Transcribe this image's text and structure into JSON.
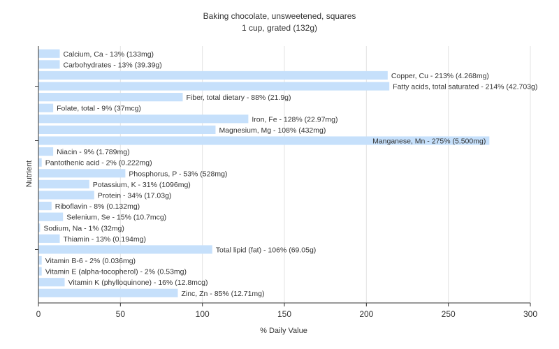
{
  "chart_data": {
    "type": "bar",
    "orientation": "horizontal",
    "title": "Baking chocolate, unsweetened, squares",
    "subtitle": "1 cup, grated (132g)",
    "xlabel": "% Daily Value",
    "ylabel": "Nutrient",
    "xlim": [
      0,
      300
    ],
    "xticks": [
      "0",
      "50",
      "100",
      "150",
      "200",
      "250",
      "300"
    ],
    "grid": true,
    "legend": "none",
    "bar_color": "#c6e0fb",
    "categories": [
      "Calcium, Ca",
      "Carbohydrates",
      "Copper, Cu",
      "Fatty acids, total saturated",
      "Fiber, total dietary",
      "Folate, total",
      "Iron, Fe",
      "Magnesium, Mg",
      "Manganese, Mn",
      "Niacin",
      "Pantothenic acid",
      "Phosphorus, P",
      "Potassium, K",
      "Protein",
      "Riboflavin",
      "Selenium, Se",
      "Sodium, Na",
      "Thiamin",
      "Total lipid (fat)",
      "Vitamin B-6",
      "Vitamin E (alpha-tocopherol)",
      "Vitamin K (phylloquinone)",
      "Zinc, Zn"
    ],
    "values": [
      13,
      13,
      213,
      214,
      88,
      9,
      128,
      108,
      275,
      9,
      2,
      53,
      31,
      34,
      8,
      15,
      1,
      13,
      106,
      2,
      2,
      16,
      85
    ],
    "labels": [
      "Calcium, Ca - 13% (133mg)",
      "Carbohydrates - 13% (39.39g)",
      "Copper, Cu - 213% (4.268mg)",
      "Fatty acids, total saturated - 214% (42.703g)",
      "Fiber, total dietary - 88% (21.9g)",
      "Folate, total - 9% (37mcg)",
      "Iron, Fe - 128% (22.97mg)",
      "Magnesium, Mg - 108% (432mg)",
      "Manganese, Mn - 275% (5.500mg)",
      "Niacin - 9% (1.789mg)",
      "Pantothenic acid - 2% (0.222mg)",
      "Phosphorus, P - 53% (528mg)",
      "Potassium, K - 31% (1096mg)",
      "Protein - 34% (17.03g)",
      "Riboflavin - 8% (0.132mg)",
      "Selenium, Se - 15% (10.7mcg)",
      "Sodium, Na - 1% (32mg)",
      "Thiamin - 13% (0.194mg)",
      "Total lipid (fat) - 106% (69.05g)",
      "Vitamin B-6 - 2% (0.036mg)",
      "Vitamin E (alpha-tocopherol) - 2% (0.53mg)",
      "Vitamin K (phylloquinone) - 16% (12.8mcg)",
      "Zinc, Zn - 85% (12.71mg)"
    ]
  }
}
